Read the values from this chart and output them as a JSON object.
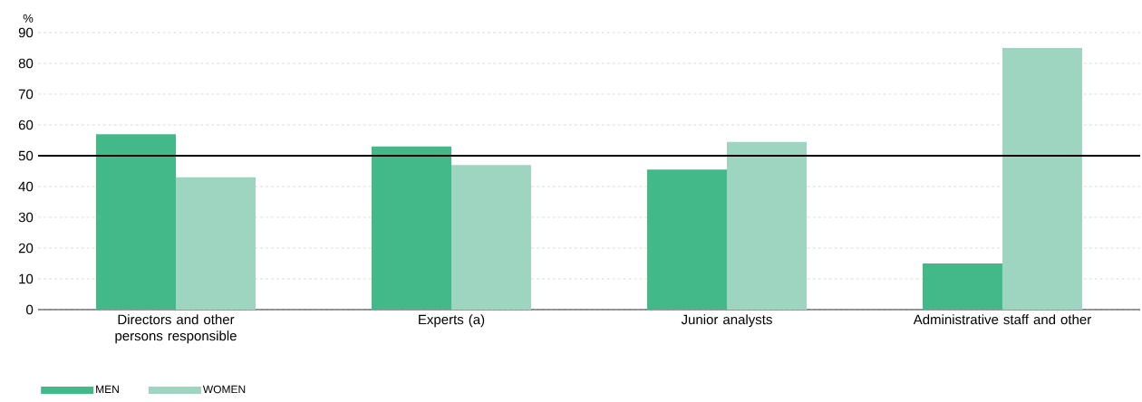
{
  "chart_data": {
    "type": "bar",
    "ylabel": "%",
    "categories": [
      "Directors and other persons responsible",
      "Experts (a)",
      "Junior analysts",
      "Administrative staff and other"
    ],
    "series": [
      {
        "name": "MEN",
        "color": "#43b98a",
        "values": [
          57,
          53,
          45.5,
          15
        ]
      },
      {
        "name": "WOMEN",
        "color": "#9dd5c0",
        "values": [
          43,
          47,
          54.5,
          85
        ]
      }
    ],
    "ylim": [
      0,
      90
    ],
    "yticks": [
      0,
      10,
      20,
      30,
      40,
      50,
      60,
      70,
      80,
      90
    ],
    "grid": "y",
    "legend": "bottom left",
    "ref_lines": [
      {
        "axis": "y",
        "value": 50,
        "color": "#000000"
      }
    ]
  }
}
